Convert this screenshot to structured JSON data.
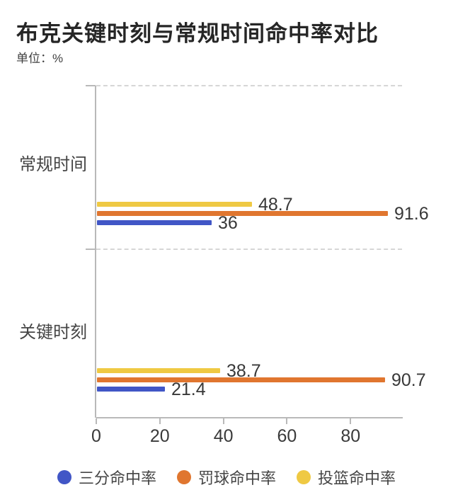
{
  "title": "布克关键时刻与常规时间命中率对比",
  "unit_label": "单位：%",
  "chart_data": {
    "type": "bar",
    "orientation": "horizontal",
    "title": "布克关键时刻与常规时间命中率对比",
    "unit": "%",
    "categories": [
      "常规时间",
      "关键时刻"
    ],
    "series": [
      {
        "name": "三分命中率",
        "color": "#4156C6",
        "values": [
          36,
          21.4
        ]
      },
      {
        "name": "罚球命中率",
        "color": "#E0762F",
        "values": [
          91.6,
          90.7
        ]
      },
      {
        "name": "投篮命中率",
        "color": "#EFC943",
        "values": [
          48.7,
          38.7
        ]
      }
    ],
    "bar_order_top_to_bottom": [
      "投篮命中率",
      "罚球命中率",
      "三分命中率"
    ],
    "x_ticks": [
      0,
      20,
      40,
      60,
      80
    ],
    "xlim": [
      0,
      96.2
    ],
    "grid": "dashed-category-separators",
    "legend_position": "bottom"
  },
  "legend": [
    {
      "label": "三分命中率",
      "color": "#4156C6"
    },
    {
      "label": "罚球命中率",
      "color": "#E0762F"
    },
    {
      "label": "投篮命中率",
      "color": "#EFC943"
    }
  ]
}
